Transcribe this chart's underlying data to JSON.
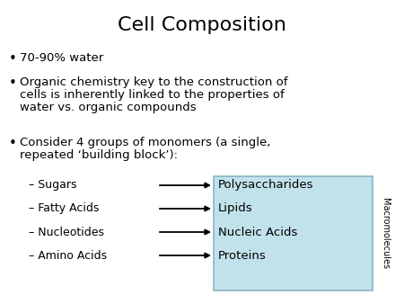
{
  "title": "Cell Composition",
  "title_fontsize": 16,
  "background_color": "#ffffff",
  "text_color": "#000000",
  "bullet1": "70-90% water",
  "bullet2_line1": "Organic chemistry key to the construction of",
  "bullet2_line2": "cells is inherently linked to the properties of",
  "bullet2_line3": "water vs. organic compounds",
  "bullet3_line1": "Consider 4 groups of monomers (a single,",
  "bullet3_line2": "repeated ‘building block’):",
  "sub_items": [
    "– Sugars",
    "– Fatty Acids",
    "– Nucleotides",
    "– Amino Acids"
  ],
  "macro_items": [
    "Polysaccharides",
    "Lipids",
    "Nucleic Acids",
    "Proteins"
  ],
  "box_facecolor": "#b8dde8",
  "box_edgecolor": "#7aabba",
  "macromolecules_label": "Macromolecules",
  "font_size": 9.5,
  "sub_font_size": 9,
  "macro_font_size": 9.5,
  "macro_label_fontsize": 7
}
